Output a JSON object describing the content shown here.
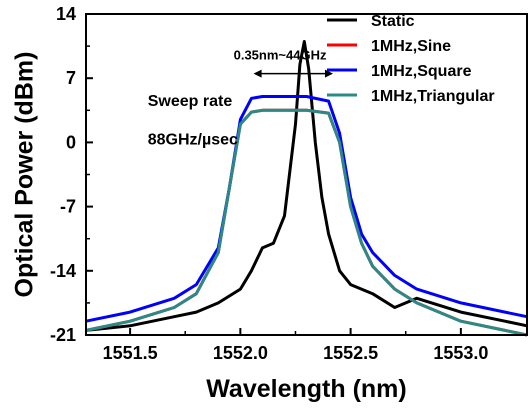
{
  "chart_data": {
    "type": "line",
    "title": "",
    "xlabel": "Wavelength (nm)",
    "ylabel": "Optical Power (dBm)",
    "xlim": [
      1551.3,
      1553.3
    ],
    "ylim": [
      -21,
      14
    ],
    "x_ticks": [
      1551.5,
      1552.0,
      1552.5,
      1553.0
    ],
    "x_tick_labels": [
      "1551.5",
      "1552.0",
      "1552.5",
      "1553.0"
    ],
    "y_ticks": [
      -21,
      -14,
      -7,
      0,
      7,
      14
    ],
    "y_tick_labels": [
      "-21",
      "-14",
      "-7",
      "0",
      "7",
      "14"
    ],
    "grid": false,
    "legend_position": "top-right",
    "series": [
      {
        "name": "Static",
        "color": "#000000",
        "x": [
          1551.3,
          1551.5,
          1551.7,
          1551.8,
          1551.9,
          1552.0,
          1552.05,
          1552.1,
          1552.15,
          1552.2,
          1552.22,
          1552.25,
          1552.27,
          1552.29,
          1552.31,
          1552.34,
          1552.37,
          1552.4,
          1552.45,
          1552.5,
          1552.6,
          1552.7,
          1552.8,
          1553.0,
          1553.2,
          1553.3
        ],
        "y": [
          -20.5,
          -20,
          -19,
          -18.5,
          -17.5,
          -16,
          -14,
          -11.5,
          -11,
          -8,
          -4,
          2,
          8.5,
          11,
          8,
          0,
          -6,
          -10,
          -14,
          -15.5,
          -16.5,
          -18,
          -17,
          -18.5,
          -19.5,
          -20
        ]
      },
      {
        "name": "1MHz,Sine",
        "color": "#ff0000",
        "x": [
          1551.3,
          1551.5,
          1551.7,
          1551.8,
          1551.9,
          1551.95,
          1552.0,
          1552.05,
          1552.1,
          1552.2,
          1552.3,
          1552.4,
          1552.45,
          1552.5,
          1552.55,
          1552.6,
          1552.7,
          1552.8,
          1553.0,
          1553.2,
          1553.3
        ],
        "y": [
          -20.5,
          -19.5,
          -18,
          -16.5,
          -12,
          -5,
          2,
          3.3,
          3.5,
          3.5,
          3.5,
          3.2,
          0,
          -7,
          -11,
          -13.5,
          -16,
          -17.5,
          -19.5,
          -20.5,
          -21
        ]
      },
      {
        "name": "1MHz,Square",
        "color": "#0000ff",
        "x": [
          1551.3,
          1551.5,
          1551.7,
          1551.8,
          1551.9,
          1551.95,
          1552.0,
          1552.05,
          1552.1,
          1552.2,
          1552.3,
          1552.4,
          1552.45,
          1552.5,
          1552.55,
          1552.6,
          1552.7,
          1552.8,
          1553.0,
          1553.2,
          1553.3
        ],
        "y": [
          -19.5,
          -18.5,
          -17,
          -15.5,
          -11.5,
          -5,
          2.5,
          4.8,
          5,
          5,
          5,
          4.5,
          1,
          -6,
          -10,
          -12,
          -14.5,
          -16,
          -17.5,
          -18.5,
          -19
        ]
      },
      {
        "name": "1MHz,Triangular",
        "color": "#2a8a88",
        "x": [
          1551.3,
          1551.5,
          1551.7,
          1551.8,
          1551.9,
          1551.95,
          1552.0,
          1552.05,
          1552.1,
          1552.2,
          1552.3,
          1552.4,
          1552.45,
          1552.5,
          1552.55,
          1552.6,
          1552.7,
          1552.8,
          1553.0,
          1553.2,
          1553.3
        ],
        "y": [
          -20.5,
          -19.5,
          -18,
          -16.5,
          -12,
          -5,
          2,
          3.3,
          3.5,
          3.5,
          3.5,
          3.2,
          0,
          -7,
          -11,
          -13.5,
          -16,
          -17.5,
          -19.5,
          -20.5,
          -21
        ]
      }
    ],
    "annotations": [
      {
        "text": "0.35nm~44GHz",
        "x": 1552.18,
        "y": 9.5
      },
      {
        "text": "Sweep rate",
        "x": 1551.58,
        "y": 4.5
      },
      {
        "text": "88GHz/µsec",
        "x": 1551.58,
        "y": 0.3
      }
    ],
    "double_arrow": {
      "x_from": 1552.06,
      "x_to": 1552.42,
      "y": 7.5
    }
  }
}
